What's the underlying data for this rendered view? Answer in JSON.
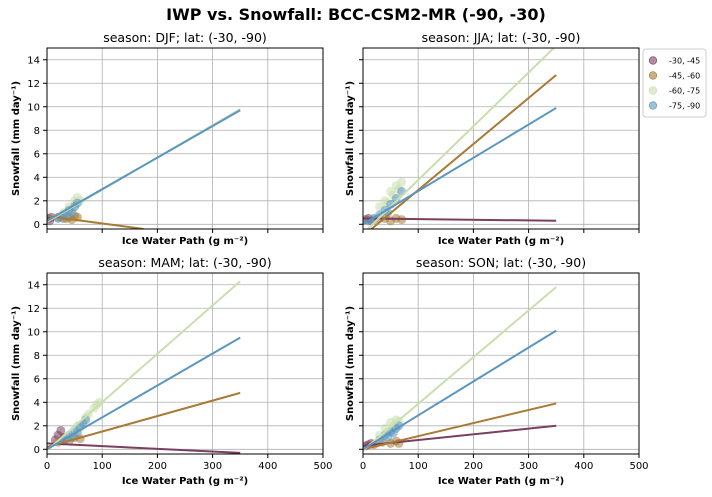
{
  "figure": {
    "title": "IWP vs. Snowfall: BCC-CSM2-MR  (-90, -30)"
  },
  "legend": {
    "position": "right of top-right panel",
    "entries": [
      {
        "label": "-30, -45",
        "color": "#7b3f5e"
      },
      {
        "label": "-45, -60",
        "color": "#a87a35"
      },
      {
        "label": "-60, -75",
        "color": "#c8dfae"
      },
      {
        "label": "-75, -90",
        "color": "#5b96bf"
      }
    ]
  },
  "chart_data": [
    {
      "type": "scatter",
      "title": "season: DJF; lat: (-30, -90)",
      "xlabel": "Ice Water Path (g m⁻²)",
      "ylabel": "Snowfall (mm day⁻¹)",
      "xlim": [
        0,
        500
      ],
      "ylim": [
        -0.4,
        15
      ],
      "xticks": [
        0,
        100,
        200,
        300,
        400,
        500
      ],
      "yticks": [
        0,
        2,
        4,
        6,
        8,
        10,
        12,
        14
      ],
      "show_xticklabels": false,
      "show_yticklabels": true,
      "grid": true,
      "series": [
        {
          "name": "-30, -45",
          "color": "#7b3f5e",
          "points": [
            [
              2,
              0.5
            ],
            [
              5,
              0.3
            ],
            [
              8,
              0.6
            ]
          ],
          "fit": [
            [
              0,
              0.6
            ],
            [
              12,
              0.5
            ]
          ]
        },
        {
          "name": "-45, -60",
          "color": "#a87a35",
          "points": [
            [
              20,
              0.6
            ],
            [
              30,
              0.5
            ],
            [
              40,
              0.6
            ],
            [
              50,
              0.7
            ],
            [
              55,
              0.6
            ],
            [
              45,
              0.4
            ],
            [
              35,
              0.5
            ]
          ],
          "fit": [
            [
              0,
              0.7
            ],
            [
              175,
              -0.4
            ]
          ]
        },
        {
          "name": "-60, -75",
          "color": "#c8dfae",
          "points": [
            [
              30,
              1.0
            ],
            [
              40,
              1.5
            ],
            [
              50,
              2.0
            ],
            [
              55,
              2.3
            ],
            [
              45,
              1.2
            ],
            [
              35,
              0.8
            ],
            [
              60,
              2.0
            ],
            [
              50,
              1.6
            ]
          ],
          "fit": [
            [
              0,
              0.2
            ],
            [
              350,
              9.8
            ]
          ]
        },
        {
          "name": "-75, -90",
          "color": "#5b96bf",
          "points": [
            [
              20,
              0.5
            ],
            [
              30,
              0.8
            ],
            [
              40,
              1.2
            ],
            [
              50,
              1.5
            ],
            [
              55,
              1.8
            ],
            [
              45,
              1.0
            ],
            [
              35,
              0.7
            ],
            [
              25,
              0.6
            ]
          ],
          "fit": [
            [
              0,
              0.3
            ],
            [
              350,
              9.7
            ]
          ]
        }
      ]
    },
    {
      "type": "scatter",
      "title": "season: JJA; lat: (-30, -90)",
      "xlabel": "Ice Water Path (g m⁻²)",
      "ylabel": "Snowfall (mm day⁻¹)",
      "xlim": [
        0,
        500
      ],
      "ylim": [
        -0.4,
        15
      ],
      "xticks": [
        0,
        100,
        200,
        300,
        400,
        500
      ],
      "yticks": [
        0,
        2,
        4,
        6,
        8,
        10,
        12,
        14
      ],
      "show_xticklabels": false,
      "show_yticklabels": false,
      "grid": true,
      "series": [
        {
          "name": "-30, -45",
          "color": "#7b3f5e",
          "points": [
            [
              5,
              0.4
            ],
            [
              10,
              0.5
            ],
            [
              15,
              0.3
            ]
          ],
          "fit": [
            [
              0,
              0.5
            ],
            [
              350,
              0.3
            ]
          ]
        },
        {
          "name": "-45, -60",
          "color": "#a87a35",
          "points": [
            [
              20,
              0.4
            ],
            [
              30,
              0.5
            ],
            [
              40,
              0.5
            ],
            [
              50,
              0.3
            ],
            [
              60,
              0.5
            ],
            [
              70,
              0.4
            ]
          ],
          "fit": [
            [
              0,
              -1.0
            ],
            [
              350,
              12.7
            ]
          ]
        },
        {
          "name": "-60, -75",
          "color": "#c8dfae",
          "points": [
            [
              30,
              1.5
            ],
            [
              40,
              2.0
            ],
            [
              50,
              2.8
            ],
            [
              60,
              3.3
            ],
            [
              70,
              3.6
            ],
            [
              55,
              2.5
            ],
            [
              45,
              1.8
            ],
            [
              65,
              3.0
            ]
          ],
          "fit": [
            [
              0,
              -0.8
            ],
            [
              350,
              15.2
            ]
          ]
        },
        {
          "name": "-75, -90",
          "color": "#5b96bf",
          "points": [
            [
              10,
              0.3
            ],
            [
              20,
              0.5
            ],
            [
              30,
              0.8
            ],
            [
              40,
              1.2
            ],
            [
              50,
              1.7
            ],
            [
              60,
              2.2
            ],
            [
              70,
              2.8
            ],
            [
              45,
              1.0
            ]
          ],
          "fit": [
            [
              0,
              0.0
            ],
            [
              350,
              9.9
            ]
          ]
        }
      ]
    },
    {
      "type": "scatter",
      "title": "season: MAM; lat: (-30, -90)",
      "xlabel": "Ice Water Path (g m⁻²)",
      "ylabel": "Snowfall (mm day⁻¹)",
      "xlim": [
        0,
        500
      ],
      "ylim": [
        -0.4,
        15
      ],
      "xticks": [
        0,
        100,
        200,
        300,
        400,
        500
      ],
      "yticks": [
        0,
        2,
        4,
        6,
        8,
        10,
        12,
        14
      ],
      "show_xticklabels": true,
      "show_yticklabels": true,
      "grid": true,
      "series": [
        {
          "name": "-30, -45",
          "color": "#7b3f5e",
          "points": [
            [
              25,
              1.6
            ],
            [
              20,
              1.2
            ],
            [
              30,
              1.0
            ],
            [
              15,
              0.8
            ]
          ],
          "fit": [
            [
              0,
              0.5
            ],
            [
              350,
              -0.3
            ]
          ]
        },
        {
          "name": "-45, -60",
          "color": "#a87a35",
          "points": [
            [
              20,
              0.6
            ],
            [
              30,
              0.8
            ],
            [
              40,
              0.7
            ],
            [
              50,
              1.0
            ],
            [
              60,
              0.9
            ]
          ],
          "fit": [
            [
              0,
              0.2
            ],
            [
              350,
              4.8
            ]
          ]
        },
        {
          "name": "-60, -75",
          "color": "#c8dfae",
          "points": [
            [
              40,
              1.0
            ],
            [
              55,
              2.0
            ],
            [
              70,
              2.7
            ],
            [
              85,
              3.5
            ],
            [
              95,
              4.0
            ],
            [
              60,
              1.8
            ],
            [
              75,
              3.0
            ],
            [
              90,
              3.8
            ]
          ],
          "fit": [
            [
              0,
              -0.1
            ],
            [
              350,
              14.3
            ]
          ]
        },
        {
          "name": "-75, -90",
          "color": "#5b96bf",
          "points": [
            [
              30,
              0.7
            ],
            [
              40,
              1.2
            ],
            [
              50,
              1.6
            ],
            [
              60,
              2.0
            ],
            [
              70,
              2.5
            ],
            [
              55,
              1.4
            ],
            [
              45,
              1.0
            ],
            [
              65,
              2.2
            ]
          ],
          "fit": [
            [
              0,
              0.0
            ],
            [
              350,
              9.5
            ]
          ]
        }
      ]
    },
    {
      "type": "scatter",
      "title": "season: SON; lat: (-30, -90)",
      "xlabel": "Ice Water Path (g m⁻²)",
      "ylabel": "Snowfall (mm day⁻¹)",
      "xlim": [
        0,
        500
      ],
      "ylim": [
        -0.4,
        15
      ],
      "xticks": [
        0,
        100,
        200,
        300,
        400,
        500
      ],
      "yticks": [
        0,
        2,
        4,
        6,
        8,
        10,
        12,
        14
      ],
      "show_xticklabels": true,
      "show_yticklabels": false,
      "grid": true,
      "series": [
        {
          "name": "-30, -45",
          "color": "#7b3f5e",
          "points": [
            [
              5,
              0.3
            ],
            [
              10,
              0.4
            ],
            [
              15,
              0.5
            ]
          ],
          "fit": [
            [
              0,
              0.3
            ],
            [
              350,
              2.0
            ]
          ]
        },
        {
          "name": "-45, -60",
          "color": "#a87a35",
          "points": [
            [
              20,
              0.4
            ],
            [
              35,
              0.6
            ],
            [
              50,
              0.5
            ],
            [
              60,
              0.7
            ],
            [
              65,
              0.5
            ]
          ],
          "fit": [
            [
              0,
              0.0
            ],
            [
              350,
              3.9
            ]
          ]
        },
        {
          "name": "-60, -75",
          "color": "#c8dfae",
          "points": [
            [
              30,
              1.2
            ],
            [
              40,
              1.8
            ],
            [
              50,
              2.3
            ],
            [
              60,
              2.5
            ],
            [
              45,
              1.5
            ],
            [
              55,
              2.0
            ],
            [
              65,
              2.4
            ]
          ],
          "fit": [
            [
              0,
              -0.1
            ],
            [
              350,
              13.8
            ]
          ]
        },
        {
          "name": "-75, -90",
          "color": "#5b96bf",
          "points": [
            [
              30,
              0.8
            ],
            [
              40,
              1.2
            ],
            [
              50,
              1.5
            ],
            [
              60,
              1.8
            ],
            [
              65,
              2.0
            ],
            [
              45,
              1.0
            ],
            [
              55,
              1.4
            ]
          ],
          "fit": [
            [
              0,
              0.0
            ],
            [
              350,
              10.1
            ]
          ]
        }
      ]
    }
  ]
}
